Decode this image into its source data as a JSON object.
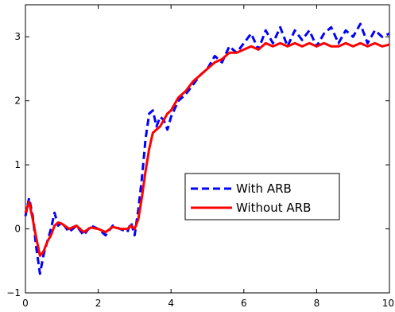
{
  "chart_data": {
    "type": "line",
    "title": "",
    "xlabel": "",
    "ylabel": "",
    "xlim": [
      0,
      10
    ],
    "ylim": [
      -1,
      3.5
    ],
    "x_ticks": [
      0,
      2,
      4,
      6,
      8,
      10
    ],
    "x_tick_labels": [
      "0",
      "2",
      "4",
      "6",
      "8",
      "10"
    ],
    "y_ticks": [
      -1,
      0,
      1,
      2,
      3
    ],
    "y_tick_labels": [
      "−1",
      "0",
      "1",
      "2",
      "3"
    ],
    "grid": false,
    "legend_position": "center-right",
    "series": [
      {
        "name": "With ARB",
        "color": "#0000ff",
        "line_style": "dashed",
        "x": [
          0,
          0.1,
          0.2,
          0.3,
          0.4,
          0.5,
          0.6,
          0.7,
          0.8,
          0.9,
          1.0,
          1.2,
          1.4,
          1.6,
          1.8,
          2.0,
          2.2,
          2.4,
          2.6,
          2.8,
          2.9,
          3.0,
          3.1,
          3.2,
          3.3,
          3.4,
          3.5,
          3.6,
          3.7,
          3.8,
          3.9,
          4.0,
          4.2,
          4.4,
          4.6,
          4.8,
          5.0,
          5.2,
          5.4,
          5.6,
          5.8,
          6.0,
          6.2,
          6.4,
          6.6,
          6.8,
          7.0,
          7.2,
          7.4,
          7.6,
          7.8,
          8.0,
          8.2,
          8.4,
          8.6,
          8.8,
          9.0,
          9.2,
          9.4,
          9.6,
          9.8,
          10.0
        ],
        "y": [
          0.2,
          0.48,
          0.2,
          -0.3,
          -0.7,
          -0.4,
          -0.2,
          0.0,
          0.25,
          0.05,
          0.1,
          -0.05,
          0.05,
          -0.1,
          0.05,
          0.0,
          -0.1,
          0.05,
          0.0,
          -0.05,
          0.1,
          -0.1,
          0.3,
          0.8,
          1.4,
          1.8,
          1.85,
          1.6,
          1.75,
          1.7,
          1.55,
          1.75,
          2.0,
          2.1,
          2.25,
          2.4,
          2.5,
          2.7,
          2.6,
          2.85,
          2.75,
          2.9,
          3.05,
          2.8,
          3.1,
          2.9,
          3.15,
          2.85,
          3.1,
          2.95,
          3.1,
          2.85,
          3.05,
          3.15,
          2.9,
          3.1,
          3.0,
          3.2,
          2.9,
          3.1,
          3.0,
          3.05
        ]
      },
      {
        "name": "Without ARB",
        "color": "#ff0000",
        "line_style": "solid",
        "x": [
          0,
          0.1,
          0.2,
          0.3,
          0.4,
          0.5,
          0.6,
          0.7,
          0.8,
          0.9,
          1.0,
          1.2,
          1.4,
          1.6,
          1.8,
          2.0,
          2.2,
          2.4,
          2.6,
          2.8,
          2.9,
          3.0,
          3.1,
          3.2,
          3.3,
          3.4,
          3.5,
          3.6,
          3.7,
          3.8,
          3.9,
          4.0,
          4.2,
          4.4,
          4.6,
          4.8,
          5.0,
          5.2,
          5.4,
          5.6,
          5.8,
          6.0,
          6.2,
          6.4,
          6.6,
          6.8,
          7.0,
          7.2,
          7.4,
          7.6,
          7.8,
          8.0,
          8.2,
          8.4,
          8.6,
          8.8,
          9.0,
          9.2,
          9.4,
          9.6,
          9.8,
          10.0
        ],
        "y": [
          0.25,
          0.42,
          0.15,
          -0.15,
          -0.42,
          -0.35,
          -0.2,
          -0.1,
          0.05,
          0.1,
          0.08,
          0.0,
          0.05,
          -0.05,
          0.02,
          0.0,
          -0.05,
          0.03,
          0.0,
          0.0,
          0.05,
          0.0,
          0.15,
          0.5,
          0.9,
          1.25,
          1.5,
          1.55,
          1.6,
          1.7,
          1.8,
          1.85,
          2.05,
          2.15,
          2.3,
          2.4,
          2.5,
          2.6,
          2.65,
          2.75,
          2.75,
          2.8,
          2.85,
          2.8,
          2.9,
          2.85,
          2.9,
          2.85,
          2.9,
          2.85,
          2.9,
          2.85,
          2.9,
          2.85,
          2.85,
          2.9,
          2.85,
          2.9,
          2.85,
          2.9,
          2.85,
          2.88
        ]
      }
    ]
  }
}
